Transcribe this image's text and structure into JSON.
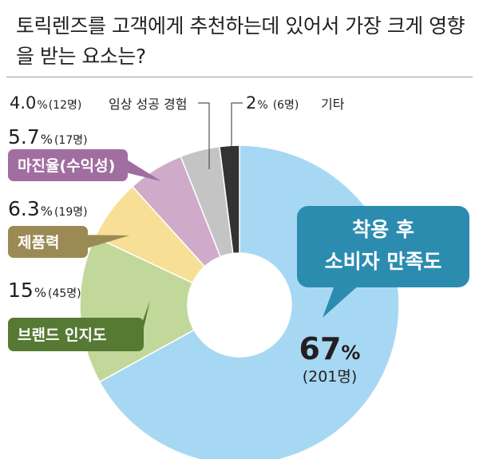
{
  "title": "토릭렌즈를 고객에게 추천하는데 있어서 가장 크게 영향을 받는 요소는?",
  "chart_data": {
    "type": "pie",
    "title": "토릭렌즈를 고객에게 추천하는데 있어서 가장 크게 영향을 받는 요소는?",
    "slices": [
      {
        "label": "착용 후 소비자 만족도",
        "label_lines": [
          "착용 후",
          "소비자 만족도"
        ],
        "percent": 67,
        "percent_text": "67",
        "count": "(201명)",
        "color": "#a7d8f3",
        "badge_color": "#2b8cb0"
      },
      {
        "label": "브랜드 인지도",
        "percent": 15,
        "percent_text": "15",
        "count": "(45명)",
        "color": "#c2d89a",
        "badge_color": "#567a33"
      },
      {
        "label": "제품력",
        "percent": 6.3,
        "percent_text": "6.3",
        "count": "(19명)",
        "color": "#f7df96",
        "badge_color": "#9c8a55"
      },
      {
        "label": "마진율(수익성)",
        "percent": 5.7,
        "percent_text": "5.7",
        "count": "(17명)",
        "color": "#cfaac9",
        "badge_color": "#a06ea0"
      },
      {
        "label": "임상 성공 경험",
        "percent": 4.0,
        "percent_text": "4.0",
        "count": "(12명)",
        "color": "#c4c4c4",
        "badge_color": ""
      },
      {
        "label": "기타",
        "percent": 2,
        "percent_text": "2",
        "count": "(6명)",
        "color": "#333333",
        "badge_color": ""
      }
    ],
    "percent_sign": "%"
  }
}
